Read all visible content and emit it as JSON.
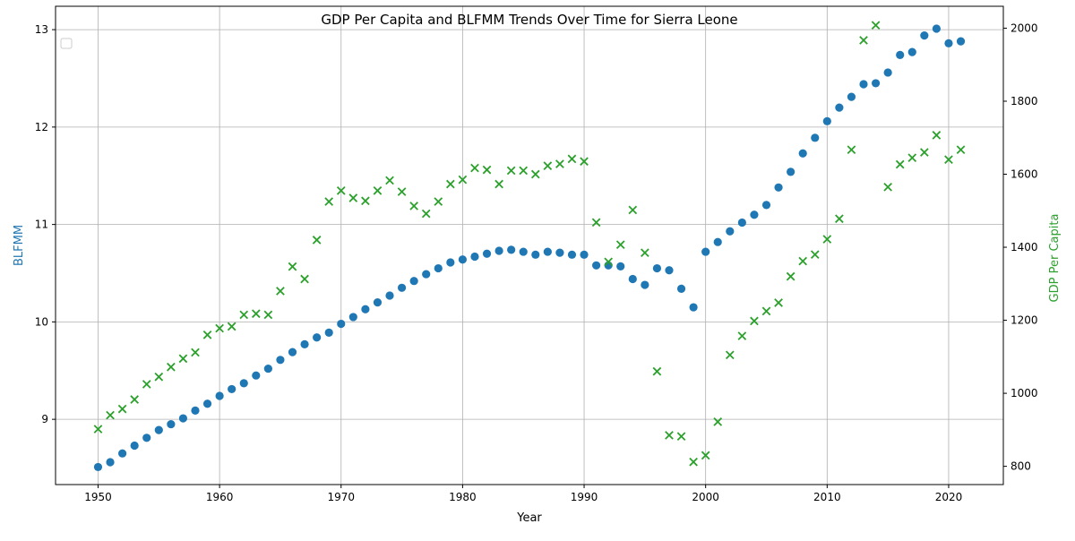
{
  "chart_data": {
    "type": "scatter",
    "title": "GDP Per Capita and BLFMM Trends Over Time for Sierra Leone",
    "xlabel": "Year",
    "ylabel_left": "BLFMM",
    "ylabel_right": "GDP Per Capita",
    "xlim": [
      1946.5,
      2024.5
    ],
    "ylim_left": [
      8.33,
      13.24
    ],
    "ylim_right": [
      750,
      2060
    ],
    "x_ticks": [
      1950,
      1960,
      1970,
      1980,
      1990,
      2000,
      2010,
      2020
    ],
    "y_ticks_left": [
      9,
      10,
      11,
      12,
      13
    ],
    "y_ticks_right": [
      800,
      1000,
      1200,
      1400,
      1600,
      1800,
      2000
    ],
    "grid": true,
    "legend": "top-left (empty)",
    "colors": {
      "blfmm": "#1f77b4",
      "gdp": "#2ca02c",
      "grid": "#b0b0b0",
      "axis": "#000000"
    },
    "years": [
      1950,
      1951,
      1952,
      1953,
      1954,
      1955,
      1956,
      1957,
      1958,
      1959,
      1960,
      1961,
      1962,
      1963,
      1964,
      1965,
      1966,
      1967,
      1968,
      1969,
      1970,
      1971,
      1972,
      1973,
      1974,
      1975,
      1976,
      1977,
      1978,
      1979,
      1980,
      1981,
      1982,
      1983,
      1984,
      1985,
      1986,
      1987,
      1988,
      1989,
      1990,
      1991,
      1992,
      1993,
      1994,
      1995,
      1996,
      1997,
      1998,
      1999,
      2000,
      2001,
      2002,
      2003,
      2004,
      2005,
      2006,
      2007,
      2008,
      2009,
      2010,
      2011,
      2012,
      2013,
      2014,
      2015,
      2016,
      2017,
      2018,
      2019,
      2020,
      2021
    ],
    "series": [
      {
        "name": "BLFMM",
        "axis": "left",
        "marker": "circle",
        "values": [
          8.51,
          8.56,
          8.65,
          8.73,
          8.81,
          8.89,
          8.95,
          9.01,
          9.09,
          9.16,
          9.24,
          9.31,
          9.37,
          9.45,
          9.52,
          9.61,
          9.69,
          9.77,
          9.84,
          9.89,
          9.98,
          10.05,
          10.13,
          10.2,
          10.27,
          10.35,
          10.42,
          10.49,
          10.55,
          10.61,
          10.64,
          10.67,
          10.7,
          10.73,
          10.74,
          10.72,
          10.69,
          10.72,
          10.71,
          10.69,
          10.69,
          10.58,
          10.58,
          10.57,
          10.44,
          10.38,
          10.55,
          10.53,
          10.34,
          10.15,
          10.72,
          10.82,
          10.93,
          11.02,
          11.1,
          11.2,
          11.38,
          11.54,
          11.73,
          11.89,
          12.06,
          12.2,
          12.31,
          12.44,
          12.45,
          12.56,
          12.74,
          12.77,
          12.94,
          13.01,
          12.86,
          12.88
        ]
      },
      {
        "name": "GDP Per Capita",
        "axis": "right",
        "marker": "x",
        "values": [
          902,
          940,
          957,
          983,
          1025,
          1045,
          1072,
          1095,
          1112,
          1160,
          1178,
          1183,
          1215,
          1218,
          1215,
          1280,
          1347,
          1313,
          1420,
          1525,
          1555,
          1535,
          1527,
          1555,
          1583,
          1552,
          1513,
          1492,
          1525,
          1573,
          1585,
          1617,
          1612,
          1573,
          1610,
          1610,
          1600,
          1623,
          1628,
          1642,
          1635,
          1468,
          1360,
          1407,
          1502,
          1385,
          1060,
          885,
          882,
          812,
          830,
          922,
          1105,
          1157,
          1198,
          1225,
          1248,
          1320,
          1362,
          1380,
          1422,
          1478,
          1667,
          1967,
          2008,
          1565,
          1627,
          1645,
          1660,
          1707,
          1640,
          1667
        ]
      }
    ]
  }
}
